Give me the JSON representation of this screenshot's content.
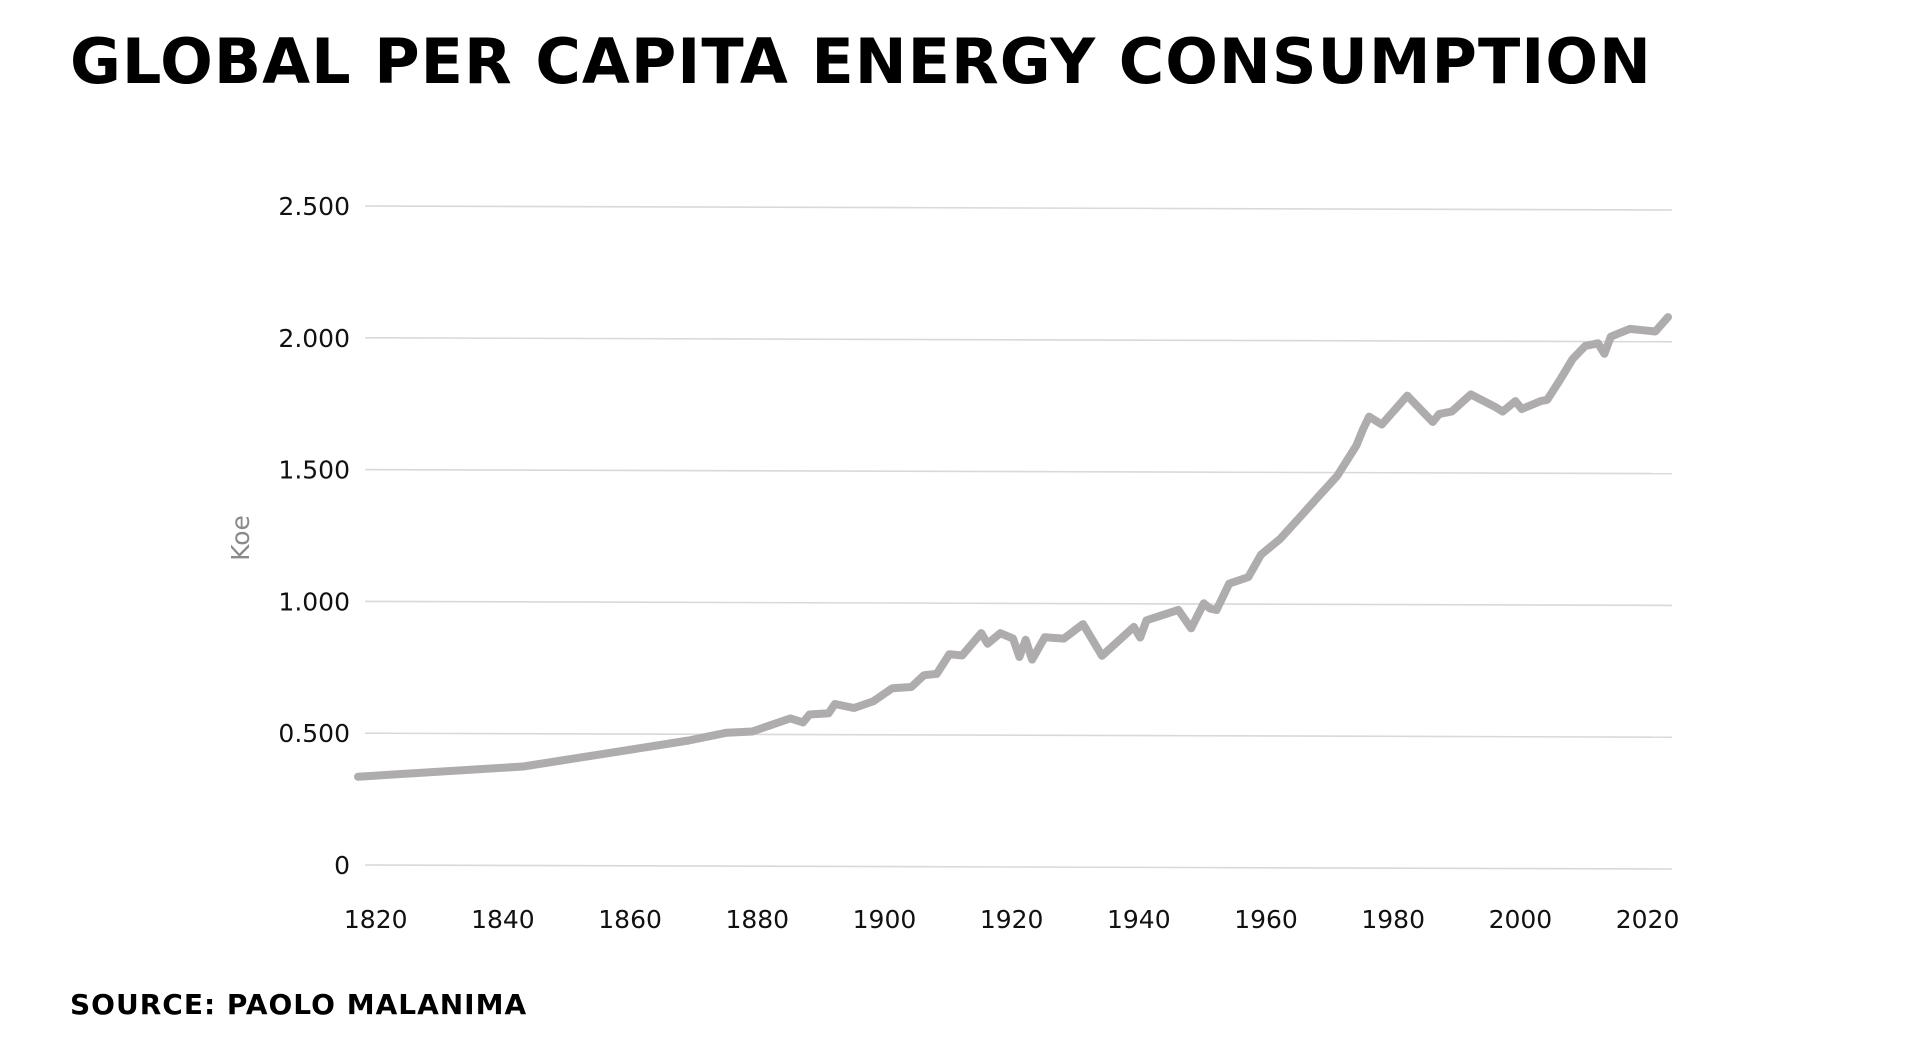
{
  "header": {
    "title": "GLOBAL PER CAPITA ENERGY CONSUMPTION"
  },
  "footer": {
    "source": "SOURCE: PAOLO MALANIMA"
  },
  "colors": {
    "line": "#aeacac",
    "grid": "#d9d9d9",
    "axis_title": "#8a8a8a",
    "text": "#000000"
  },
  "chart_data": {
    "type": "line",
    "title": "GLOBAL PER CAPITA ENERGY CONSUMPTION",
    "xlabel": "",
    "ylabel": "Koe",
    "xlim": [
      1818,
      2024
    ],
    "ylim": [
      0,
      2500
    ],
    "grid": true,
    "legend": "none",
    "x_ticks": [
      1820,
      1840,
      1860,
      1880,
      1900,
      1920,
      1940,
      1960,
      1980,
      2000,
      2020
    ],
    "x_tick_labels": [
      "1820",
      "1840",
      "1860",
      "1880",
      "1900",
      "1920",
      "1940",
      "1960",
      "1980",
      "2000",
      "2020"
    ],
    "y_ticks": [
      0,
      500,
      1000,
      1500,
      2000,
      2500
    ],
    "y_tick_labels": [
      "0",
      "0.500",
      "1.000",
      "1.500",
      "2.000",
      "2.500"
    ],
    "series": [
      {
        "x": [
          1818,
          1844,
          1870,
          1873,
          1876,
          1880,
          1886,
          1888,
          1889,
          1892,
          1893,
          1896,
          1899,
          1902,
          1905,
          1907,
          1909,
          1911,
          1913,
          1916,
          1917,
          1919,
          1921,
          1922,
          1923,
          1924,
          1926,
          1929,
          1932,
          1935,
          1940,
          1941,
          1942,
          1947,
          1949,
          1951,
          1952,
          1953,
          1955,
          1958,
          1960,
          1963,
          1966,
          1969,
          1972,
          1975,
          1976,
          1977,
          1979,
          1983,
          1987,
          1988,
          1990,
          1993,
          1997,
          1998,
          2000,
          2001,
          2004,
          2005,
          2007,
          2009,
          2011,
          2013,
          2014,
          2015,
          2016,
          2018,
          2022,
          2024
        ],
        "values": [
          335,
          375,
          475,
          490,
          505,
          510,
          560,
          545,
          575,
          580,
          615,
          600,
          625,
          675,
          680,
          725,
          730,
          805,
          800,
          885,
          845,
          885,
          865,
          795,
          860,
          785,
          870,
          865,
          920,
          800,
          910,
          870,
          935,
          975,
          905,
          1000,
          980,
          975,
          1075,
          1100,
          1185,
          1245,
          1325,
          1405,
          1485,
          1600,
          1660,
          1710,
          1680,
          1790,
          1690,
          1720,
          1730,
          1795,
          1745,
          1730,
          1770,
          1740,
          1770,
          1775,
          1850,
          1930,
          1980,
          1990,
          1950,
          2015,
          2025,
          2045,
          2035,
          2090
        ]
      }
    ]
  }
}
